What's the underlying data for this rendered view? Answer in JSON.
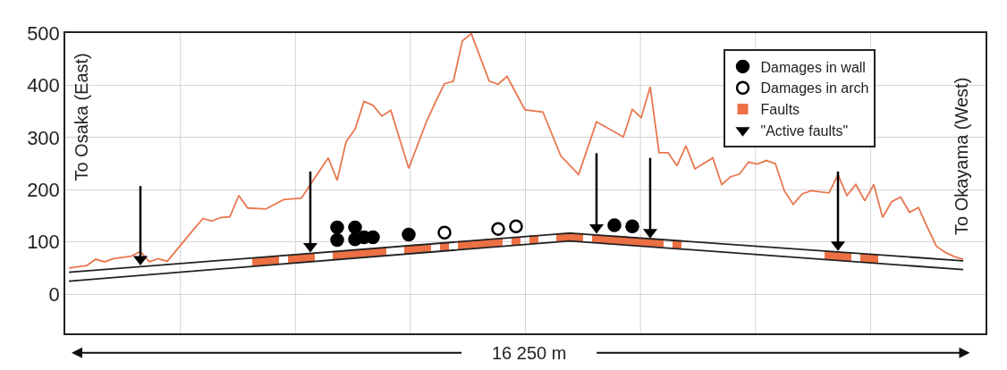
{
  "chart_data": {
    "type": "line",
    "categories": [
      null,
      null,
      null,
      null,
      null,
      null,
      null,
      null,
      null,
      null,
      null,
      null,
      null,
      null,
      null,
      null,
      null,
      null,
      null,
      null,
      null,
      null,
      null,
      null,
      null,
      null,
      null,
      null,
      null,
      null,
      null,
      null,
      null,
      null,
      null,
      null,
      null,
      null,
      null,
      null,
      null,
      null,
      null,
      null,
      null,
      null,
      null,
      null,
      null,
      null,
      null,
      null,
      null,
      null,
      null,
      null,
      null,
      null,
      null,
      null,
      null,
      null,
      null,
      null,
      null,
      null,
      null,
      null,
      null,
      null,
      null,
      null,
      null,
      null,
      null,
      null,
      null,
      null,
      null,
      null,
      null,
      null,
      null,
      null,
      null,
      null,
      null,
      null,
      null,
      null,
      null,
      null,
      null,
      null,
      null,
      null,
      null,
      null,
      null,
      null,
      null
    ],
    "series": [
      {
        "color": "#e8774f",
        "values": [
          50,
          null,
          55,
          67,
          62,
          68,
          null,
          73,
          82,
          62,
          68,
          63,
          null,
          null,
          125,
          145,
          140,
          147,
          148,
          189,
          165,
          null,
          163,
          null,
          181,
          null,
          184,
          210,
          null,
          261,
          218,
          292,
          316,
          369,
          362,
          341,
          352,
          null,
          241,
          null,
          331,
          368,
          403,
          408,
          485,
          499,
          null,
          408,
          402,
          417,
          null,
          353,
          null,
          349,
          null,
          265,
          null,
          229,
          null,
          330,
          null,
          null,
          301,
          354,
          338,
          397,
          271,
          271,
          246,
          284,
          240,
          null,
          261,
          210,
          225,
          230,
          253,
          249,
          256,
          250,
          198,
          172,
          192,
          198,
          null,
          194,
          229,
          189,
          210,
          179,
          210,
          147,
          177,
          186,
          157,
          166,
          128,
          92,
          80,
          72,
          67
        ]
      },
      {
        "color": "#222222",
        "values": [
          42,
          null,
          null,
          null,
          null,
          null,
          null,
          null,
          null,
          null,
          null,
          null,
          null,
          null,
          null,
          null,
          null,
          null,
          null,
          null,
          null,
          null,
          null,
          null,
          null,
          null,
          null,
          null,
          null,
          null,
          null,
          null,
          null,
          null,
          null,
          null,
          null,
          null,
          null,
          null,
          null,
          null,
          null,
          null,
          null,
          null,
          null,
          null,
          null,
          null,
          null,
          null,
          null,
          null,
          null,
          null,
          117,
          null,
          null,
          null,
          null,
          null,
          null,
          null,
          null,
          null,
          null,
          null,
          null,
          null,
          null,
          null,
          null,
          null,
          null,
          null,
          null,
          null,
          null,
          null,
          null,
          null,
          null,
          null,
          null,
          null,
          null,
          null,
          null,
          null,
          null,
          null,
          null,
          null,
          null,
          null,
          null,
          null,
          null,
          null,
          64
        ]
      },
      {
        "color": "#222222",
        "values": [
          25,
          null,
          null,
          null,
          null,
          null,
          null,
          null,
          null,
          null,
          null,
          null,
          null,
          null,
          null,
          null,
          null,
          null,
          null,
          null,
          null,
          null,
          null,
          null,
          null,
          null,
          null,
          null,
          null,
          null,
          null,
          null,
          null,
          null,
          null,
          null,
          null,
          null,
          null,
          null,
          null,
          null,
          null,
          null,
          null,
          null,
          null,
          null,
          null,
          null,
          null,
          null,
          null,
          null,
          null,
          null,
          102,
          null,
          null,
          null,
          null,
          null,
          null,
          null,
          null,
          null,
          null,
          null,
          null,
          null,
          null,
          null,
          null,
          null,
          null,
          null,
          null,
          null,
          null,
          null,
          null,
          null,
          null,
          null,
          null,
          null,
          null,
          null,
          null,
          null,
          null,
          null,
          null,
          null,
          null,
          null,
          null,
          null,
          null,
          null,
          47
        ]
      },
      {
        "type": "scatter",
        "name": "Damages in wall",
        "color": "#000000",
        "marker": "circle",
        "values": [
          null,
          null,
          null,
          null,
          null,
          null,
          null,
          null,
          null,
          null,
          null,
          null,
          null,
          null,
          null,
          null,
          null,
          null,
          null,
          null,
          null,
          null,
          null,
          null,
          null,
          null,
          null,
          null,
          null,
          null,
          104,
          null,
          105,
          109,
          109,
          null,
          null,
          null,
          114,
          null,
          null,
          null,
          null,
          null,
          null,
          null,
          null,
          null,
          null,
          null,
          null,
          null,
          null,
          null,
          null,
          null,
          null,
          null,
          null,
          null,
          null,
          132,
          null,
          130,
          null,
          null,
          null,
          null,
          null,
          null,
          null,
          null,
          null,
          null,
          null,
          null,
          null,
          null,
          null,
          null,
          null,
          null,
          null,
          null,
          null,
          null,
          null,
          null,
          null,
          null,
          null,
          null,
          null,
          null,
          null,
          null,
          null,
          null,
          null,
          null,
          null
        ]
      },
      {
        "type": "scatter",
        "color": "#000000",
        "marker": "circle",
        "values": [
          null,
          null,
          null,
          null,
          null,
          null,
          null,
          null,
          null,
          null,
          null,
          null,
          null,
          null,
          null,
          null,
          null,
          null,
          null,
          null,
          null,
          null,
          null,
          null,
          null,
          null,
          null,
          null,
          null,
          null,
          128,
          null,
          128,
          null,
          null,
          null,
          null,
          null,
          null,
          null,
          null,
          null,
          null,
          null,
          null,
          null,
          null,
          null,
          null,
          null,
          null,
          null,
          null,
          null,
          null,
          null,
          null,
          null,
          null,
          null,
          null,
          null,
          null,
          null,
          null,
          null,
          null,
          null,
          null,
          null,
          null,
          null,
          null,
          null,
          null,
          null,
          null,
          null,
          null,
          null,
          null,
          null,
          null,
          null,
          null,
          null,
          null,
          null,
          null,
          null,
          null,
          null,
          null,
          null,
          null,
          null,
          null,
          null,
          null,
          null,
          null
        ]
      },
      {
        "type": "scatter",
        "name": "Damages in arch",
        "color": "#000000",
        "marker": "circle-open",
        "values": [
          null,
          null,
          null,
          null,
          null,
          null,
          null,
          null,
          null,
          null,
          null,
          null,
          null,
          null,
          null,
          null,
          null,
          null,
          null,
          null,
          null,
          null,
          null,
          null,
          null,
          null,
          null,
          null,
          null,
          null,
          null,
          null,
          null,
          null,
          null,
          null,
          null,
          null,
          null,
          null,
          null,
          null,
          118,
          null,
          null,
          null,
          null,
          null,
          125,
          null,
          130,
          null,
          null,
          null,
          null,
          null,
          null,
          null,
          null,
          null,
          null,
          null,
          null,
          null,
          null,
          null,
          null,
          null,
          null,
          null,
          null,
          null,
          null,
          null,
          null,
          null,
          null,
          null,
          null,
          null,
          null,
          null,
          null,
          null,
          null,
          null,
          null,
          null,
          null,
          null,
          null,
          null,
          null,
          null,
          null,
          null,
          null,
          null,
          null,
          null,
          null
        ]
      },
      {
        "type": "bar",
        "name": "Faults",
        "color": "#ec7044",
        "values": [
          null,
          null,
          null,
          null,
          null,
          null,
          null,
          null,
          null,
          null,
          null,
          null,
          null,
          null,
          null,
          null,
          null,
          null,
          null,
          null,
          null,
          16,
          16,
          16,
          null,
          16,
          16,
          16,
          null,
          null,
          16,
          16,
          16,
          16,
          16,
          16,
          null,
          null,
          16,
          16,
          16,
          null,
          16,
          null,
          16,
          16,
          16,
          16,
          16,
          null,
          16,
          null,
          16,
          null,
          null,
          16,
          16,
          16,
          null,
          16,
          16,
          16,
          16,
          16,
          16,
          16,
          16,
          null,
          16,
          null,
          null,
          null,
          null,
          null,
          null,
          null,
          null,
          null,
          null,
          null,
          null,
          null,
          null,
          null,
          null,
          16,
          16,
          16,
          null,
          16,
          16,
          null,
          null,
          null,
          null,
          null,
          null,
          null,
          null,
          null,
          null
        ],
        "base": [
          null,
          null,
          null,
          null,
          null,
          null,
          null,
          null,
          null,
          null,
          null,
          null,
          null,
          null,
          null,
          null,
          null,
          null,
          null,
          null,
          null,
          54,
          55,
          57,
          null,
          59,
          61,
          62,
          null,
          null,
          66,
          68,
          69,
          70,
          72,
          73,
          null,
          null,
          77,
          79,
          80,
          null,
          83,
          null,
          86,
          87,
          88,
          90,
          91,
          null,
          94,
          null,
          97,
          null,
          null,
          101,
          102,
          101,
          null,
          98,
          97,
          96,
          95,
          93,
          92,
          91,
          90,
          null,
          87,
          null,
          null,
          null,
          null,
          null,
          null,
          null,
          null,
          null,
          null,
          null,
          null,
          null,
          null,
          null,
          null,
          66,
          65,
          63,
          null,
          61,
          60,
          null,
          null,
          null,
          null,
          null,
          null,
          null,
          null,
          null,
          null
        ]
      },
      {
        "type": "scatter",
        "name": "\"Active faults\"",
        "color": "#000000",
        "marker": "triangle",
        "errors": [
          null,
          null,
          null,
          null,
          null,
          null,
          null,
          null,
          [
            67,
            207
          ],
          null,
          null,
          null,
          null,
          null,
          null,
          null,
          null,
          null,
          null,
          null,
          null,
          null,
          null,
          null,
          null,
          null,
          null,
          [
            92,
            235
          ],
          null,
          null,
          null,
          null,
          null,
          null,
          null,
          null,
          null,
          null,
          null,
          null,
          null,
          null,
          null,
          null,
          null,
          null,
          null,
          null,
          null,
          null,
          null,
          null,
          null,
          null,
          null,
          null,
          null,
          null,
          null,
          [
            128,
            270
          ],
          null,
          null,
          null,
          null,
          null,
          [
            119,
            261
          ],
          null,
          null,
          null,
          null,
          null,
          null,
          null,
          null,
          null,
          null,
          null,
          null,
          null,
          null,
          null,
          null,
          null,
          null,
          null,
          null,
          [
            95,
            235
          ],
          null,
          null,
          null,
          null,
          null,
          null,
          null,
          null,
          null,
          null,
          null,
          null,
          null,
          null
        ],
        "values": [
          null,
          null,
          null,
          null,
          null,
          null,
          null,
          null,
          67,
          null,
          null,
          null,
          null,
          null,
          null,
          null,
          null,
          null,
          null,
          null,
          null,
          null,
          null,
          null,
          null,
          null,
          null,
          92,
          null,
          null,
          null,
          null,
          null,
          null,
          null,
          null,
          null,
          null,
          null,
          null,
          null,
          null,
          null,
          null,
          null,
          null,
          null,
          null,
          null,
          null,
          null,
          null,
          null,
          null,
          null,
          null,
          null,
          null,
          null,
          128,
          null,
          null,
          null,
          null,
          null,
          119,
          null,
          null,
          null,
          null,
          null,
          null,
          null,
          null,
          null,
          null,
          null,
          null,
          null,
          null,
          null,
          null,
          null,
          null,
          null,
          null,
          95,
          null,
          null,
          null,
          null,
          null,
          null,
          null,
          null,
          null,
          null,
          null,
          null,
          null,
          null
        ]
      }
    ],
    "ylim": [
      -75,
      500
    ],
    "yticks": [
      0,
      100,
      200,
      300,
      400,
      500
    ],
    "grid": true,
    "legend": "top right",
    "tick_labels": "y",
    "annotations": [
      "To Osaka (East)",
      "To Okayama (West)",
      "16 250 m"
    ]
  }
}
